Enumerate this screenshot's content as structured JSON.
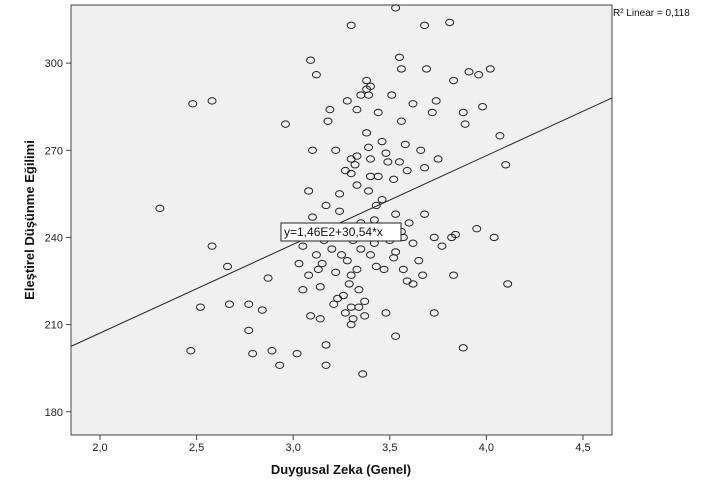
{
  "chart_data": {
    "type": "scatter",
    "title": "",
    "xlabel": "Duygusal Zeka (Genel)",
    "ylabel": "Eleştirel Düşünme Eğilimi",
    "xlim": [
      1.85,
      4.65
    ],
    "ylim": [
      172,
      320
    ],
    "x_ticks": [
      2.0,
      2.5,
      3.0,
      3.5,
      4.0,
      4.5
    ],
    "x_tick_labels": [
      "2,0",
      "2,5",
      "3,0",
      "3,5",
      "4,0",
      "4,5"
    ],
    "y_ticks": [
      180,
      210,
      240,
      270,
      300
    ],
    "y_tick_labels": [
      "180",
      "210",
      "240",
      "270",
      "300"
    ],
    "grid": false,
    "fit_line": {
      "intercept": 146,
      "slope": 30.54,
      "label": "y=1,46E2+30,54*x",
      "r2_label": "R² Linear = 0,118"
    },
    "points": [
      [
        3.53,
        319
      ],
      [
        3.3,
        313
      ],
      [
        3.68,
        313
      ],
      [
        3.81,
        314
      ],
      [
        3.09,
        301
      ],
      [
        3.55,
        302
      ],
      [
        4.02,
        298
      ],
      [
        3.56,
        298
      ],
      [
        3.91,
        297
      ],
      [
        3.69,
        298
      ],
      [
        3.38,
        294
      ],
      [
        3.96,
        296
      ],
      [
        3.12,
        296
      ],
      [
        3.83,
        294
      ],
      [
        3.4,
        292
      ],
      [
        3.38,
        291
      ],
      [
        3.39,
        289
      ],
      [
        3.51,
        289
      ],
      [
        3.35,
        289
      ],
      [
        2.48,
        286
      ],
      [
        2.58,
        287
      ],
      [
        3.28,
        287
      ],
      [
        3.33,
        284
      ],
      [
        3.19,
        284
      ],
      [
        3.44,
        283
      ],
      [
        3.62,
        286
      ],
      [
        3.74,
        287
      ],
      [
        3.98,
        285
      ],
      [
        3.88,
        283
      ],
      [
        3.72,
        283
      ],
      [
        2.96,
        279
      ],
      [
        3.18,
        280
      ],
      [
        3.56,
        280
      ],
      [
        3.89,
        279
      ],
      [
        3.38,
        276
      ],
      [
        3.46,
        273
      ],
      [
        3.39,
        271
      ],
      [
        3.58,
        272
      ],
      [
        4.07,
        275
      ],
      [
        3.22,
        270
      ],
      [
        3.48,
        269
      ],
      [
        3.66,
        270
      ],
      [
        3.33,
        268
      ],
      [
        3.3,
        267
      ],
      [
        3.4,
        267
      ],
      [
        3.49,
        266
      ],
      [
        3.55,
        266
      ],
      [
        3.1,
        270
      ],
      [
        3.32,
        265
      ],
      [
        3.27,
        263
      ],
      [
        3.44,
        261
      ],
      [
        3.59,
        263
      ],
      [
        3.3,
        262
      ],
      [
        3.68,
        264
      ],
      [
        4.1,
        265
      ],
      [
        3.75,
        267
      ],
      [
        3.52,
        260
      ],
      [
        3.33,
        258
      ],
      [
        3.39,
        256
      ],
      [
        3.08,
        256
      ],
      [
        3.24,
        255
      ],
      [
        3.46,
        253
      ],
      [
        3.43,
        251
      ],
      [
        3.17,
        251
      ],
      [
        3.53,
        248
      ],
      [
        3.68,
        248
      ],
      [
        3.24,
        249
      ],
      [
        3.1,
        247
      ],
      [
        3.42,
        246
      ],
      [
        3.6,
        245
      ],
      [
        3.35,
        245
      ],
      [
        3.5,
        243
      ],
      [
        3.3,
        243
      ],
      [
        3.56,
        242
      ],
      [
        3.45,
        241
      ],
      [
        3.27,
        241
      ],
      [
        3.12,
        240
      ],
      [
        3.02,
        240
      ],
      [
        3.38,
        240
      ],
      [
        3.48,
        240
      ],
      [
        3.57,
        240
      ],
      [
        3.73,
        240
      ],
      [
        3.84,
        241
      ],
      [
        3.95,
        243
      ],
      [
        4.04,
        240
      ],
      [
        3.16,
        239
      ],
      [
        3.31,
        239
      ],
      [
        3.42,
        238
      ],
      [
        3.5,
        239
      ],
      [
        3.62,
        238
      ],
      [
        3.77,
        237
      ],
      [
        3.05,
        237
      ],
      [
        3.2,
        236
      ],
      [
        3.35,
        236
      ],
      [
        2.58,
        237
      ],
      [
        3.12,
        234
      ],
      [
        3.25,
        234
      ],
      [
        3.4,
        234
      ],
      [
        3.52,
        233
      ],
      [
        3.65,
        232
      ],
      [
        3.82,
        240
      ],
      [
        3.28,
        232
      ],
      [
        3.03,
        231
      ],
      [
        3.15,
        231
      ],
      [
        3.43,
        230
      ],
      [
        3.33,
        229
      ],
      [
        2.66,
        230
      ],
      [
        3.57,
        229
      ],
      [
        3.47,
        229
      ],
      [
        3.22,
        228
      ],
      [
        3.08,
        227
      ],
      [
        3.67,
        227
      ],
      [
        3.83,
        227
      ],
      [
        3.3,
        227
      ],
      [
        2.87,
        226
      ],
      [
        3.59,
        225
      ],
      [
        3.62,
        224
      ],
      [
        4.11,
        224
      ],
      [
        3.14,
        223
      ],
      [
        3.34,
        222
      ],
      [
        3.05,
        222
      ],
      [
        3.26,
        220
      ],
      [
        3.23,
        219
      ],
      [
        3.37,
        218
      ],
      [
        2.67,
        217
      ],
      [
        2.77,
        217
      ],
      [
        3.21,
        217
      ],
      [
        3.3,
        216
      ],
      [
        3.34,
        216
      ],
      [
        2.52,
        216
      ],
      [
        3.09,
        213
      ],
      [
        3.14,
        212
      ],
      [
        3.27,
        214
      ],
      [
        3.37,
        213
      ],
      [
        3.48,
        214
      ],
      [
        3.73,
        214
      ],
      [
        2.84,
        215
      ],
      [
        3.3,
        210
      ],
      [
        3.31,
        212
      ],
      [
        2.77,
        208
      ],
      [
        3.53,
        206
      ],
      [
        3.17,
        203
      ],
      [
        3.88,
        202
      ],
      [
        2.47,
        201
      ],
      [
        2.89,
        201
      ],
      [
        3.02,
        200
      ],
      [
        2.79,
        200
      ],
      [
        3.17,
        196
      ],
      [
        2.93,
        196
      ],
      [
        3.36,
        193
      ],
      [
        2.31,
        250
      ],
      [
        3.29,
        224
      ],
      [
        3.46,
        240
      ],
      [
        3.53,
        235
      ],
      [
        3.13,
        229
      ],
      [
        3.4,
        261
      ]
    ]
  }
}
